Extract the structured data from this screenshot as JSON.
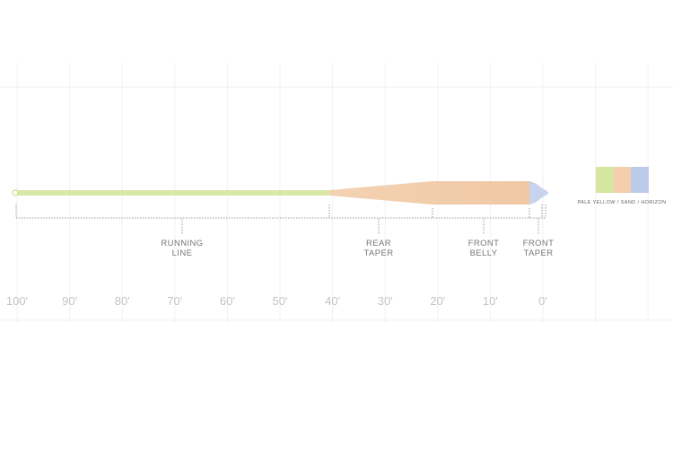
{
  "axis": {
    "labels": [
      "100'",
      "90'",
      "80'",
      "70'",
      "60'",
      "50'",
      "40'",
      "30'",
      "20'",
      "10'",
      "0'"
    ]
  },
  "sections": [
    {
      "label": [
        "RUNNING",
        "LINE"
      ]
    },
    {
      "label": [
        "REAR",
        "TAPER"
      ]
    },
    {
      "label": [
        "FRONT",
        "BELLY"
      ]
    },
    {
      "label": [
        "FRONT",
        "TAPER"
      ]
    }
  ],
  "legend": {
    "label": "PALE YELLOW / SAND / HORIZON"
  }
}
